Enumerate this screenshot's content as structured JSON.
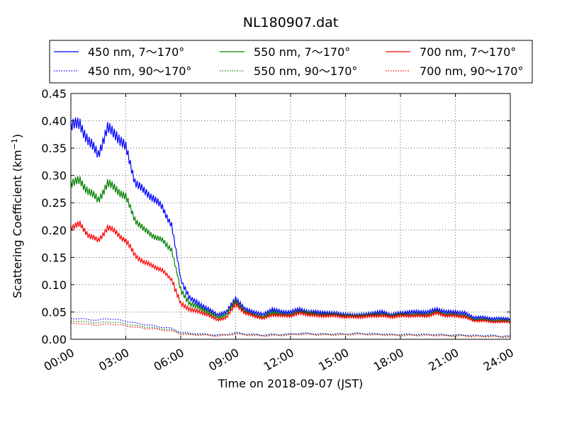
{
  "chart_data": {
    "type": "line",
    "title": "NL180907.dat",
    "xlabel": "Time on 2018-09-07 (JST)",
    "ylabel": "Scattering Coefficient (km",
    "ylabel_exp": "−1",
    "ylabel_close": ")",
    "xlim": [
      0,
      24
    ],
    "ylim": [
      0,
      0.45
    ],
    "xticks": [
      0,
      3,
      6,
      9,
      12,
      15,
      18,
      21,
      24
    ],
    "xtick_labels": [
      "00:00",
      "03:00",
      "06:00",
      "09:00",
      "12:00",
      "15:00",
      "18:00",
      "21:00",
      "24:00"
    ],
    "yticks": [
      0,
      0.05,
      0.1,
      0.15,
      0.2,
      0.25,
      0.3,
      0.35,
      0.4,
      0.45
    ],
    "ytick_labels": [
      "0.00",
      "0.05",
      "0.10",
      "0.15",
      "0.20",
      "0.25",
      "0.30",
      "0.35",
      "0.40",
      "0.45"
    ],
    "grid": true,
    "legend_position": "top",
    "x": [
      0,
      0.5,
      1,
      1.5,
      2,
      2.5,
      3,
      3.5,
      4,
      4.5,
      5,
      5.5,
      6,
      6.5,
      7,
      7.5,
      8,
      8.5,
      9,
      9.5,
      10,
      10.5,
      11,
      11.5,
      12,
      12.5,
      13,
      13.5,
      14,
      14.5,
      15,
      15.5,
      16,
      16.5,
      17,
      17.5,
      18,
      18.5,
      19,
      19.5,
      20,
      20.5,
      21,
      21.5,
      22,
      22.5,
      23,
      23.5,
      24
    ],
    "series": [
      {
        "name": "450 nm, 7～170°",
        "color": "#0000ff",
        "dash": "solid",
        "values": [
          0.39,
          0.395,
          0.36,
          0.34,
          0.385,
          0.375,
          0.35,
          0.29,
          0.27,
          0.26,
          0.24,
          0.21,
          0.11,
          0.075,
          0.065,
          0.055,
          0.045,
          0.05,
          0.075,
          0.055,
          0.05,
          0.045,
          0.055,
          0.05,
          0.05,
          0.055,
          0.05,
          0.05,
          0.048,
          0.048,
          0.045,
          0.045,
          0.045,
          0.048,
          0.05,
          0.045,
          0.048,
          0.05,
          0.05,
          0.05,
          0.055,
          0.05,
          0.05,
          0.048,
          0.04,
          0.04,
          0.038,
          0.038,
          0.038
        ]
      },
      {
        "name": "450 nm, 90～170°",
        "color": "#0000ff",
        "dash": "dotted",
        "values": [
          0.038,
          0.038,
          0.036,
          0.035,
          0.038,
          0.036,
          0.033,
          0.03,
          0.027,
          0.025,
          0.022,
          0.02,
          0.013,
          0.011,
          0.01,
          0.009,
          0.008,
          0.009,
          0.012,
          0.01,
          0.009,
          0.008,
          0.009,
          0.009,
          0.01,
          0.011,
          0.011,
          0.01,
          0.01,
          0.01,
          0.01,
          0.011,
          0.011,
          0.01,
          0.01,
          0.009,
          0.009,
          0.009,
          0.009,
          0.009,
          0.009,
          0.008,
          0.008,
          0.008,
          0.007,
          0.007,
          0.007,
          0.006,
          0.006
        ]
      },
      {
        "name": "550 nm, 7～170°",
        "color": "#008000",
        "dash": "solid",
        "values": [
          0.285,
          0.29,
          0.27,
          0.255,
          0.285,
          0.275,
          0.26,
          0.22,
          0.2,
          0.19,
          0.18,
          0.165,
          0.09,
          0.065,
          0.058,
          0.05,
          0.04,
          0.045,
          0.07,
          0.05,
          0.045,
          0.04,
          0.05,
          0.045,
          0.045,
          0.05,
          0.048,
          0.045,
          0.045,
          0.045,
          0.043,
          0.043,
          0.043,
          0.045,
          0.045,
          0.043,
          0.045,
          0.045,
          0.045,
          0.045,
          0.05,
          0.045,
          0.045,
          0.043,
          0.036,
          0.036,
          0.034,
          0.034,
          0.034
        ]
      },
      {
        "name": "550 nm, 90～170°",
        "color": "#008000",
        "dash": "dotted",
        "values": [
          0.033,
          0.033,
          0.031,
          0.03,
          0.032,
          0.031,
          0.028,
          0.025,
          0.023,
          0.021,
          0.019,
          0.017,
          0.011,
          0.009,
          0.009,
          0.008,
          0.007,
          0.008,
          0.011,
          0.009,
          0.008,
          0.007,
          0.008,
          0.008,
          0.009,
          0.01,
          0.01,
          0.009,
          0.009,
          0.009,
          0.009,
          0.01,
          0.01,
          0.009,
          0.009,
          0.008,
          0.008,
          0.008,
          0.008,
          0.008,
          0.008,
          0.007,
          0.007,
          0.007,
          0.006,
          0.006,
          0.006,
          0.005,
          0.005
        ]
      },
      {
        "name": "700 nm, 7～170°",
        "color": "#ff0000",
        "dash": "solid",
        "values": [
          0.205,
          0.21,
          0.19,
          0.18,
          0.205,
          0.195,
          0.18,
          0.155,
          0.14,
          0.135,
          0.125,
          0.11,
          0.065,
          0.055,
          0.05,
          0.045,
          0.035,
          0.04,
          0.065,
          0.048,
          0.043,
          0.038,
          0.045,
          0.043,
          0.043,
          0.048,
          0.045,
          0.043,
          0.043,
          0.043,
          0.041,
          0.041,
          0.041,
          0.043,
          0.043,
          0.041,
          0.043,
          0.043,
          0.043,
          0.043,
          0.048,
          0.043,
          0.043,
          0.041,
          0.034,
          0.034,
          0.032,
          0.032,
          0.032
        ]
      },
      {
        "name": "700 nm, 90～170°",
        "color": "#ff0000",
        "dash": "dotted",
        "values": [
          0.029,
          0.029,
          0.027,
          0.026,
          0.028,
          0.027,
          0.025,
          0.022,
          0.02,
          0.019,
          0.017,
          0.015,
          0.01,
          0.008,
          0.008,
          0.007,
          0.006,
          0.007,
          0.01,
          0.008,
          0.007,
          0.006,
          0.007,
          0.007,
          0.008,
          0.009,
          0.009,
          0.008,
          0.008,
          0.008,
          0.008,
          0.009,
          0.009,
          0.008,
          0.008,
          0.007,
          0.007,
          0.007,
          0.007,
          0.007,
          0.007,
          0.006,
          0.006,
          0.006,
          0.005,
          0.005,
          0.005,
          0.004,
          0.004
        ]
      }
    ]
  }
}
